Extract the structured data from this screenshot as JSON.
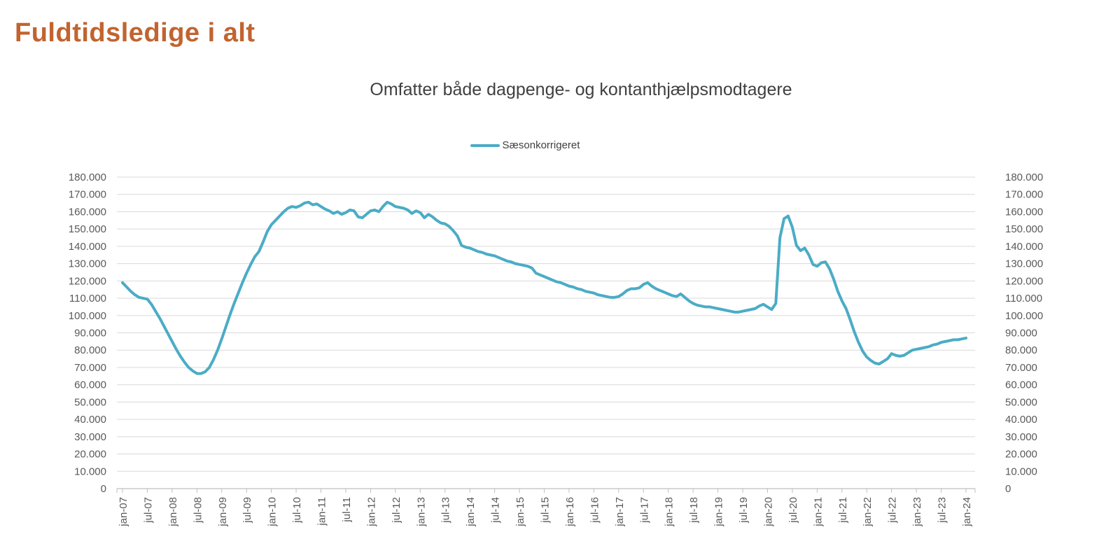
{
  "page": {
    "title": "Fuldtidsledige i alt",
    "subtitle": "Omfatter både dagpenge- og kontanthjælpsmodtagere"
  },
  "legend": {
    "label": "Sæsonkorrigeret"
  },
  "colors": {
    "title": "#C1642F",
    "subtitle": "#404040",
    "series": "#4BACC6",
    "gridline": "#D9D9D9",
    "axis": "#BFBFBF",
    "tick_label": "#595959"
  },
  "chart_data": {
    "type": "line",
    "title": "Omfatter både dagpenge- og kontanthjælpsmodtagere",
    "legend_entries": [
      "Sæsonkorrigeret"
    ],
    "legend_position": "top-center",
    "grid": true,
    "ylim": [
      0,
      180000
    ],
    "y_tick_interval": 10000,
    "y_axis_sides": [
      "left",
      "right"
    ],
    "y_ticks": [
      {
        "v": 0,
        "label": "0"
      },
      {
        "v": 10000,
        "label": "10.000"
      },
      {
        "v": 20000,
        "label": "20.000"
      },
      {
        "v": 30000,
        "label": "30.000"
      },
      {
        "v": 40000,
        "label": "40.000"
      },
      {
        "v": 50000,
        "label": "50.000"
      },
      {
        "v": 60000,
        "label": "60.000"
      },
      {
        "v": 70000,
        "label": "70.000"
      },
      {
        "v": 80000,
        "label": "80.000"
      },
      {
        "v": 90000,
        "label": "90.000"
      },
      {
        "v": 100000,
        "label": "100.000"
      },
      {
        "v": 110000,
        "label": "110.000"
      },
      {
        "v": 120000,
        "label": "120.000"
      },
      {
        "v": 130000,
        "label": "130.000"
      },
      {
        "v": 140000,
        "label": "140.000"
      },
      {
        "v": 150000,
        "label": "150.000"
      },
      {
        "v": 160000,
        "label": "160.000"
      },
      {
        "v": 170000,
        "label": "170.000"
      },
      {
        "v": 180000,
        "label": "180.000"
      }
    ],
    "x_tick_interval_months": 6,
    "x_tick_labels": [
      "jan-07",
      "jul-07",
      "jan-08",
      "jul-08",
      "jan-09",
      "jul-09",
      "jan-10",
      "jul-10",
      "jan-11",
      "jul-11",
      "jan-12",
      "jul-12",
      "jan-13",
      "jul-13",
      "jan-14",
      "jul-14",
      "jan-15",
      "jul-15",
      "jan-16",
      "jul-16",
      "jan-17",
      "jul-17",
      "jan-18",
      "jul-18",
      "jan-19",
      "jul-19",
      "jan-20",
      "jul-20",
      "jan-21",
      "jul-21",
      "jan-22",
      "jul-22",
      "jan-23",
      "jul-23",
      "jan-24"
    ],
    "series": [
      {
        "name": "Sæsonkorrigeret",
        "frequency": "monthly",
        "start": "jan-07",
        "end": "jan-24",
        "values": [
          119000,
          116500,
          114000,
          112000,
          110500,
          110000,
          109500,
          106500,
          102500,
          98500,
          94000,
          89500,
          85000,
          80500,
          76500,
          73000,
          70000,
          68000,
          66500,
          66500,
          67500,
          70000,
          74500,
          80000,
          86500,
          93500,
          100500,
          107000,
          113000,
          119000,
          124500,
          129500,
          134000,
          137000,
          142500,
          148500,
          152500,
          155000,
          157500,
          160000,
          162000,
          163000,
          162500,
          163500,
          165000,
          165500,
          164000,
          164500,
          163000,
          161500,
          160500,
          159000,
          160000,
          158500,
          159500,
          161000,
          160500,
          157000,
          156500,
          158500,
          160500,
          161000,
          160000,
          163000,
          165500,
          164500,
          163000,
          162500,
          162000,
          161000,
          159000,
          160500,
          159500,
          156500,
          158500,
          157000,
          155000,
          153500,
          153000,
          151500,
          149000,
          146000,
          140500,
          139500,
          139000,
          138000,
          137000,
          136500,
          135500,
          135000,
          134500,
          133500,
          132500,
          131500,
          131000,
          130000,
          129500,
          129000,
          128500,
          127500,
          124500,
          123500,
          122500,
          121500,
          120500,
          119500,
          119000,
          118000,
          117000,
          116500,
          115500,
          115000,
          114000,
          113500,
          113000,
          112000,
          111500,
          111000,
          110500,
          110500,
          111000,
          112500,
          114500,
          115500,
          115500,
          116000,
          118000,
          119000,
          117000,
          115500,
          114500,
          113500,
          112500,
          111500,
          111000,
          112500,
          110500,
          108500,
          107000,
          106000,
          105500,
          105000,
          105000,
          104500,
          104000,
          103500,
          103000,
          102500,
          102000,
          102000,
          102500,
          103000,
          103500,
          104000,
          105500,
          106500,
          105000,
          103500,
          107000,
          145000,
          156000,
          157500,
          151000,
          140500,
          137500,
          139000,
          135000,
          129500,
          128500,
          130500,
          131000,
          127000,
          121000,
          114000,
          108500,
          104000,
          97500,
          90500,
          84500,
          79500,
          76000,
          74000,
          72500,
          72000,
          73500,
          75000,
          78000,
          77000,
          76500,
          77000,
          78500,
          80000,
          80500,
          81000,
          81500,
          82000,
          83000,
          83500,
          84500,
          85000,
          85500,
          86000,
          86000,
          86500,
          87000
        ]
      }
    ]
  }
}
